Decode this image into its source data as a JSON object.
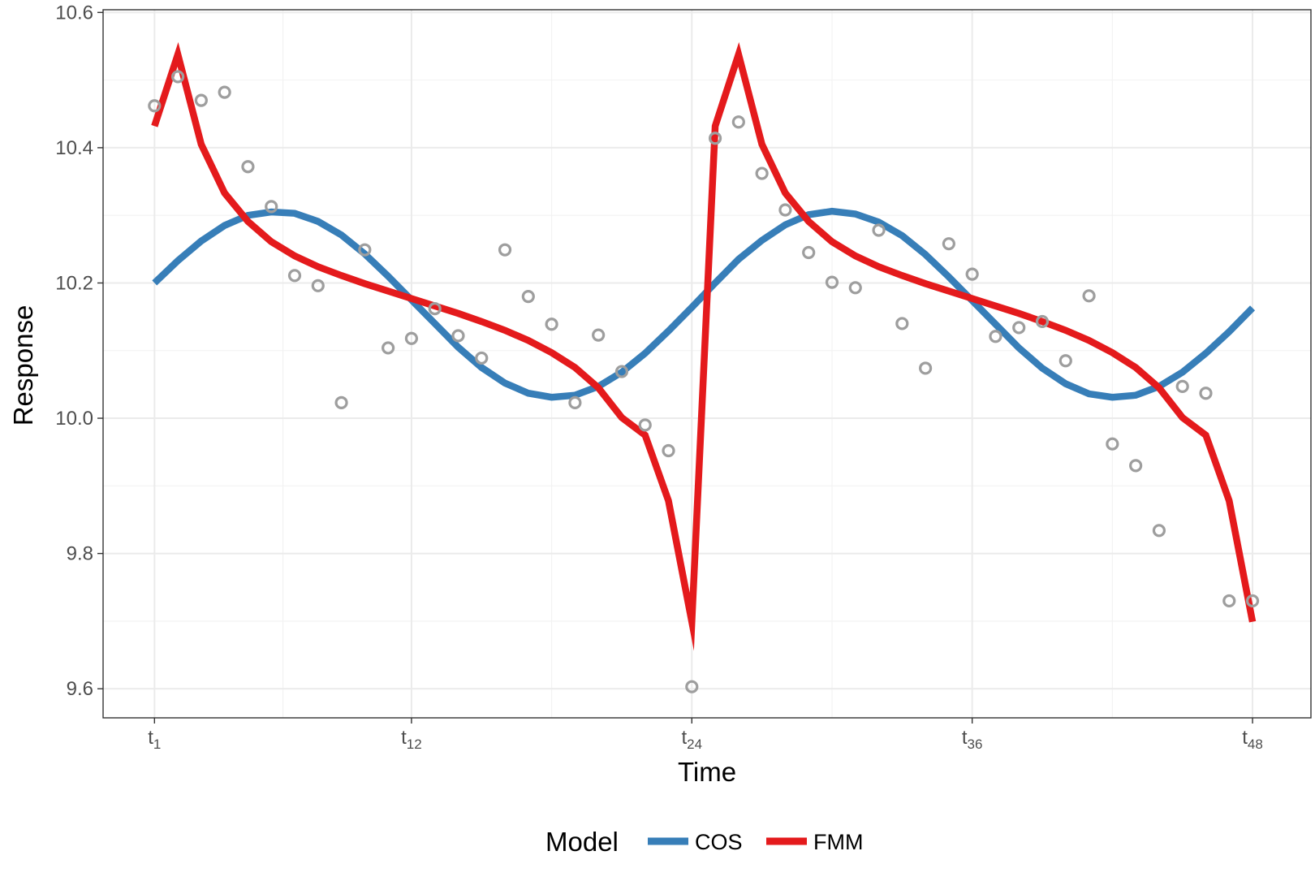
{
  "chart_data": {
    "type": "line",
    "xlabel": "Time",
    "ylabel": "Response",
    "x_ticks": [
      {
        "x": 1,
        "base": "t",
        "sub": "1"
      },
      {
        "x": 12,
        "base": "t",
        "sub": "12"
      },
      {
        "x": 24,
        "base": "t",
        "sub": "24"
      },
      {
        "x": 36,
        "base": "t",
        "sub": "36"
      },
      {
        "x": 48,
        "base": "t",
        "sub": "48"
      }
    ],
    "y_ticks": [
      "9.6",
      "9.8",
      "10.0",
      "10.2",
      "10.4",
      "10.6"
    ],
    "xlim": [
      -1.2,
      50.5
    ],
    "ylim": [
      9.557,
      10.604
    ],
    "grid": true,
    "legend": {
      "title": "Model",
      "position": "bottom"
    },
    "series": [
      {
        "name": "COS",
        "color": "#377EB8",
        "x": [
          1,
          2,
          3,
          4,
          5,
          6,
          7,
          8,
          9,
          10,
          11,
          12,
          13,
          14,
          15,
          16,
          17,
          18,
          19,
          20,
          21,
          22,
          23,
          24,
          25,
          26,
          27,
          28,
          29,
          30,
          31,
          32,
          33,
          34,
          35,
          36,
          37,
          38,
          39,
          40,
          41,
          42,
          43,
          44,
          45,
          46,
          47,
          48
        ],
        "y": [
          10.2,
          10.233,
          10.262,
          10.285,
          10.3,
          10.305,
          10.303,
          10.291,
          10.271,
          10.243,
          10.21,
          10.175,
          10.14,
          10.105,
          10.075,
          10.052,
          10.037,
          10.031,
          10.034,
          10.047,
          10.068,
          10.096,
          10.129,
          10.164,
          10.2,
          10.235,
          10.263,
          10.286,
          10.301,
          10.306,
          10.302,
          10.29,
          10.27,
          10.242,
          10.209,
          10.174,
          10.139,
          10.104,
          10.074,
          10.051,
          10.036,
          10.031,
          10.034,
          10.047,
          10.068,
          10.096,
          10.128,
          10.163
        ]
      },
      {
        "name": "FMM",
        "color": "#E41A1C",
        "x": [
          1,
          2,
          3,
          4,
          5,
          6,
          7,
          8,
          9,
          10,
          11,
          12,
          13,
          14,
          15,
          16,
          17,
          18,
          19,
          20,
          21,
          22,
          23,
          24,
          25,
          26,
          27,
          28,
          29,
          30,
          31,
          32,
          33,
          34,
          35,
          36,
          37,
          38,
          39,
          40,
          41,
          42,
          43,
          44,
          45,
          46,
          47,
          48
        ],
        "y": [
          10.432,
          10.538,
          10.405,
          10.333,
          10.291,
          10.261,
          10.24,
          10.224,
          10.211,
          10.199,
          10.188,
          10.177,
          10.166,
          10.155,
          10.143,
          10.13,
          10.115,
          10.097,
          10.075,
          10.045,
          10.001,
          9.975,
          9.878,
          9.699,
          10.432,
          10.538,
          10.405,
          10.333,
          10.291,
          10.261,
          10.24,
          10.224,
          10.211,
          10.199,
          10.188,
          10.177,
          10.166,
          10.155,
          10.143,
          10.13,
          10.115,
          10.097,
          10.075,
          10.045,
          10.001,
          9.975,
          9.878,
          9.699
        ]
      }
    ],
    "observations": {
      "color": "#9E9E9E",
      "x": [
        1,
        2,
        3,
        4,
        5,
        6,
        7,
        8,
        9,
        10,
        11,
        12,
        13,
        14,
        15,
        16,
        17,
        18,
        19,
        20,
        21,
        22,
        23,
        24,
        25,
        26,
        27,
        28,
        29,
        30,
        31,
        32,
        33,
        34,
        35,
        36,
        37,
        38,
        39,
        40,
        41,
        42,
        43,
        44,
        45,
        46,
        47,
        48
      ],
      "y": [
        10.462,
        10.505,
        10.47,
        10.482,
        10.372,
        10.313,
        10.211,
        10.196,
        10.023,
        10.249,
        10.104,
        10.118,
        10.162,
        10.122,
        10.089,
        10.249,
        10.18,
        10.139,
        10.023,
        10.123,
        10.069,
        9.99,
        9.952,
        9.603,
        10.414,
        10.438,
        10.362,
        10.308,
        10.245,
        10.201,
        10.193,
        10.278,
        10.14,
        10.074,
        10.258,
        10.213,
        10.121,
        10.134,
        10.143,
        10.085,
        10.181,
        9.962,
        9.93,
        9.834,
        10.047,
        10.037,
        9.73,
        9.73
      ]
    }
  }
}
